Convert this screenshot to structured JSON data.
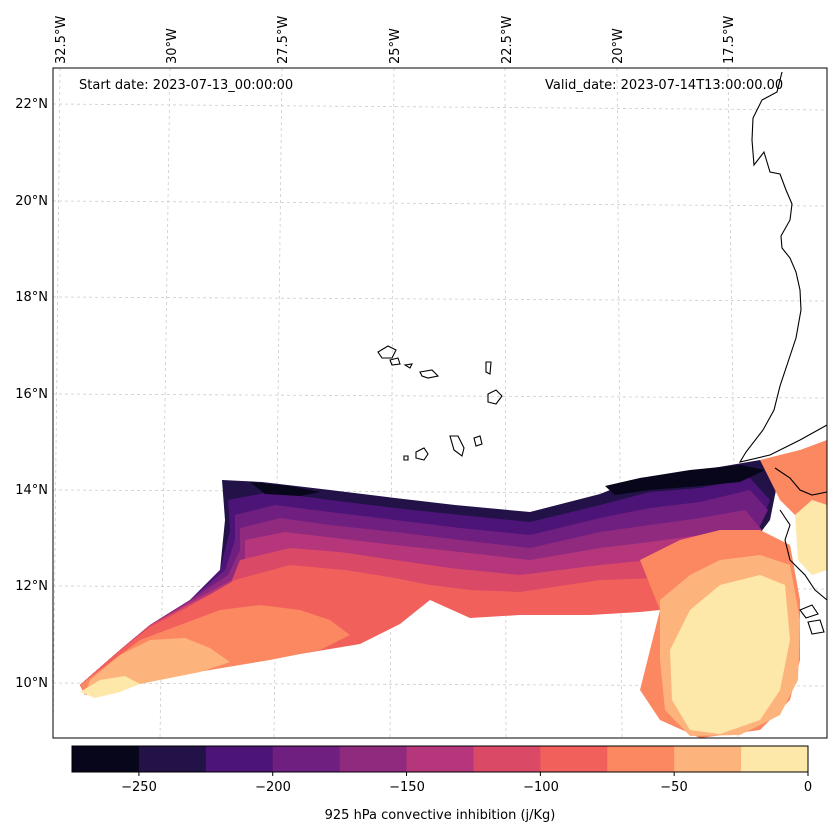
{
  "map": {
    "start_date": "Start date: 2023-07-13_00:00:00",
    "valid_date": "Valid_date: 2023-07-14T13:00:00.00",
    "lon_labels": [
      "32.5°W",
      "30°W",
      "27.5°W",
      "25°W",
      "22.5°W",
      "20°W",
      "17.5°W"
    ],
    "lat_labels": [
      "22°N",
      "20°N",
      "18°N",
      "16°N",
      "14°N",
      "12°N",
      "10°N"
    ]
  },
  "colorbar": {
    "label": "925 hPa convective inhibition (j/Kg)",
    "tick_labels": [
      "−250",
      "−200",
      "−150",
      "−100",
      "−50",
      "0"
    ],
    "levels": [
      -275,
      -250,
      -225,
      -200,
      -175,
      -150,
      -125,
      -100,
      -75,
      -50,
      -25,
      0
    ],
    "colors": [
      "#08061a",
      "#221248",
      "#4d1477",
      "#6e1f80",
      "#902a7f",
      "#b5367a",
      "#da4966",
      "#f2605c",
      "#fb8861",
      "#fdb47c",
      "#fde8a9"
    ]
  }
}
